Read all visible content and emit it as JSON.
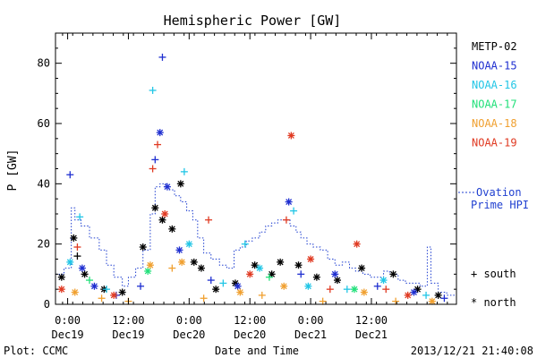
{
  "chart_data": {
    "type": "scatter",
    "title": "Hemispheric Power [GW]",
    "ylabel": "P [GW]",
    "xlabel": "Date and Time",
    "ylim": [
      0,
      90
    ],
    "xlim": [
      -0.1,
      3.2
    ],
    "yticks": [
      0,
      20,
      40,
      60,
      80
    ],
    "xticks": [
      {
        "x": 0.0,
        "top": "0:00",
        "bottom": "Dec19"
      },
      {
        "x": 0.5,
        "top": "12:00",
        "bottom": "Dec19"
      },
      {
        "x": 1.0,
        "top": "0:00",
        "bottom": "Dec20"
      },
      {
        "x": 1.5,
        "top": "12:00",
        "bottom": "Dec20"
      },
      {
        "x": 2.0,
        "top": "0:00",
        "bottom": "Dec21"
      },
      {
        "x": 2.5,
        "top": "12:00",
        "bottom": "Dec21"
      }
    ],
    "footer_left": "Plot: CCMC",
    "footer_right": "2013/12/21 21:40:08",
    "series": [
      {
        "name": "METP-02",
        "color": "#000000"
      },
      {
        "name": "NOAA-15",
        "color": "#1f2fd0"
      },
      {
        "name": "NOAA-16",
        "color": "#22c6e6"
      },
      {
        "name": "NOAA-17",
        "color": "#22e07a"
      },
      {
        "name": "NOAA-18",
        "color": "#f0a030"
      },
      {
        "name": "NOAA-19",
        "color": "#e03a22"
      }
    ],
    "markers": {
      "plus_label": "+ south",
      "star_label": "* north"
    },
    "ovation": {
      "label_line1": "Ovation",
      "label_line2": "Prime HPI",
      "color": "#1f3fd0",
      "steps": [
        [
          -0.1,
          10
        ],
        [
          -0.03,
          12
        ],
        [
          0.03,
          32
        ],
        [
          0.06,
          28
        ],
        [
          0.11,
          26
        ],
        [
          0.18,
          22
        ],
        [
          0.26,
          18
        ],
        [
          0.32,
          13
        ],
        [
          0.38,
          9
        ],
        [
          0.45,
          6
        ],
        [
          0.5,
          9
        ],
        [
          0.56,
          12
        ],
        [
          0.62,
          18
        ],
        [
          0.68,
          30
        ],
        [
          0.72,
          39
        ],
        [
          0.76,
          40
        ],
        [
          0.82,
          38
        ],
        [
          0.88,
          36
        ],
        [
          0.93,
          34
        ],
        [
          0.98,
          31
        ],
        [
          1.03,
          28
        ],
        [
          1.07,
          22
        ],
        [
          1.12,
          17
        ],
        [
          1.18,
          15
        ],
        [
          1.25,
          13
        ],
        [
          1.31,
          12
        ],
        [
          1.37,
          18
        ],
        [
          1.42,
          19
        ],
        [
          1.47,
          21
        ],
        [
          1.52,
          22
        ],
        [
          1.58,
          24
        ],
        [
          1.63,
          26
        ],
        [
          1.68,
          27
        ],
        [
          1.73,
          28
        ],
        [
          1.78,
          28
        ],
        [
          1.83,
          26
        ],
        [
          1.88,
          24
        ],
        [
          1.92,
          22
        ],
        [
          1.97,
          20
        ],
        [
          2.02,
          19
        ],
        [
          2.08,
          18
        ],
        [
          2.14,
          15
        ],
        [
          2.2,
          13
        ],
        [
          2.26,
          14
        ],
        [
          2.32,
          12
        ],
        [
          2.37,
          11
        ],
        [
          2.43,
          10
        ],
        [
          2.49,
          9
        ],
        [
          2.55,
          9
        ],
        [
          2.6,
          11
        ],
        [
          2.65,
          10
        ],
        [
          2.72,
          8
        ],
        [
          2.78,
          7
        ],
        [
          2.84,
          7
        ],
        [
          2.9,
          6
        ],
        [
          2.96,
          19
        ],
        [
          2.99,
          7
        ],
        [
          3.05,
          4
        ],
        [
          3.12,
          3
        ],
        [
          3.2,
          2
        ]
      ]
    },
    "points": [
      {
        "s": "METP-02",
        "m": "star",
        "x": -0.05,
        "y": 9
      },
      {
        "s": "METP-02",
        "m": "star",
        "x": 0.05,
        "y": 22
      },
      {
        "s": "METP-02",
        "m": "plus",
        "x": 0.08,
        "y": 16
      },
      {
        "s": "METP-02",
        "m": "star",
        "x": 0.14,
        "y": 10
      },
      {
        "s": "METP-02",
        "m": "star",
        "x": 0.3,
        "y": 5
      },
      {
        "s": "METP-02",
        "m": "star",
        "x": 0.45,
        "y": 4
      },
      {
        "s": "METP-02",
        "m": "star",
        "x": 0.62,
        "y": 19
      },
      {
        "s": "METP-02",
        "m": "star",
        "x": 0.72,
        "y": 32
      },
      {
        "s": "METP-02",
        "m": "star",
        "x": 0.78,
        "y": 28
      },
      {
        "s": "METP-02",
        "m": "star",
        "x": 0.86,
        "y": 25
      },
      {
        "s": "METP-02",
        "m": "star",
        "x": 0.93,
        "y": 40
      },
      {
        "s": "METP-02",
        "m": "star",
        "x": 1.04,
        "y": 14
      },
      {
        "s": "METP-02",
        "m": "star",
        "x": 1.1,
        "y": 12
      },
      {
        "s": "METP-02",
        "m": "star",
        "x": 1.22,
        "y": 5
      },
      {
        "s": "METP-02",
        "m": "star",
        "x": 1.38,
        "y": 7
      },
      {
        "s": "METP-02",
        "m": "star",
        "x": 1.54,
        "y": 13
      },
      {
        "s": "METP-02",
        "m": "star",
        "x": 1.68,
        "y": 10
      },
      {
        "s": "METP-02",
        "m": "star",
        "x": 1.75,
        "y": 14
      },
      {
        "s": "METP-02",
        "m": "star",
        "x": 1.9,
        "y": 13
      },
      {
        "s": "METP-02",
        "m": "star",
        "x": 2.05,
        "y": 9
      },
      {
        "s": "METP-02",
        "m": "star",
        "x": 2.22,
        "y": 8
      },
      {
        "s": "METP-02",
        "m": "star",
        "x": 2.42,
        "y": 12
      },
      {
        "s": "METP-02",
        "m": "star",
        "x": 2.68,
        "y": 10
      },
      {
        "s": "METP-02",
        "m": "star",
        "x": 2.88,
        "y": 5
      },
      {
        "s": "METP-02",
        "m": "star",
        "x": 3.05,
        "y": 3
      },
      {
        "s": "NOAA-15",
        "m": "plus",
        "x": 0.02,
        "y": 43
      },
      {
        "s": "NOAA-15",
        "m": "star",
        "x": 0.12,
        "y": 12
      },
      {
        "s": "NOAA-15",
        "m": "star",
        "x": 0.22,
        "y": 6
      },
      {
        "s": "NOAA-15",
        "m": "plus",
        "x": 0.4,
        "y": 3
      },
      {
        "s": "NOAA-15",
        "m": "plus",
        "x": 0.6,
        "y": 6
      },
      {
        "s": "NOAA-15",
        "m": "star",
        "x": 0.76,
        "y": 57
      },
      {
        "s": "NOAA-15",
        "m": "plus",
        "x": 0.78,
        "y": 82
      },
      {
        "s": "NOAA-15",
        "m": "plus",
        "x": 0.72,
        "y": 48
      },
      {
        "s": "NOAA-15",
        "m": "star",
        "x": 0.82,
        "y": 39
      },
      {
        "s": "NOAA-15",
        "m": "star",
        "x": 0.92,
        "y": 18
      },
      {
        "s": "NOAA-15",
        "m": "plus",
        "x": 1.18,
        "y": 8
      },
      {
        "s": "NOAA-15",
        "m": "star",
        "x": 1.4,
        "y": 6
      },
      {
        "s": "NOAA-15",
        "m": "star",
        "x": 1.82,
        "y": 34
      },
      {
        "s": "NOAA-15",
        "m": "plus",
        "x": 1.92,
        "y": 10
      },
      {
        "s": "NOAA-15",
        "m": "star",
        "x": 2.2,
        "y": 10
      },
      {
        "s": "NOAA-15",
        "m": "plus",
        "x": 2.55,
        "y": 6
      },
      {
        "s": "NOAA-15",
        "m": "star",
        "x": 2.85,
        "y": 4
      },
      {
        "s": "NOAA-15",
        "m": "plus",
        "x": 3.1,
        "y": 2
      },
      {
        "s": "NOAA-16",
        "m": "plus",
        "x": 0.1,
        "y": 29
      },
      {
        "s": "NOAA-16",
        "m": "star",
        "x": 0.02,
        "y": 14
      },
      {
        "s": "NOAA-16",
        "m": "plus",
        "x": 0.32,
        "y": 5
      },
      {
        "s": "NOAA-16",
        "m": "plus",
        "x": 0.7,
        "y": 71
      },
      {
        "s": "NOAA-16",
        "m": "plus",
        "x": 0.96,
        "y": 44
      },
      {
        "s": "NOAA-16",
        "m": "star",
        "x": 1.0,
        "y": 20
      },
      {
        "s": "NOAA-16",
        "m": "plus",
        "x": 1.28,
        "y": 7
      },
      {
        "s": "NOAA-16",
        "m": "plus",
        "x": 1.46,
        "y": 20
      },
      {
        "s": "NOAA-16",
        "m": "star",
        "x": 1.58,
        "y": 12
      },
      {
        "s": "NOAA-16",
        "m": "plus",
        "x": 1.86,
        "y": 31
      },
      {
        "s": "NOAA-16",
        "m": "star",
        "x": 1.98,
        "y": 6
      },
      {
        "s": "NOAA-16",
        "m": "plus",
        "x": 2.3,
        "y": 5
      },
      {
        "s": "NOAA-16",
        "m": "star",
        "x": 2.6,
        "y": 8
      },
      {
        "s": "NOAA-16",
        "m": "plus",
        "x": 2.95,
        "y": 3
      },
      {
        "s": "NOAA-17",
        "m": "plus",
        "x": 0.18,
        "y": 8
      },
      {
        "s": "NOAA-17",
        "m": "star",
        "x": 0.66,
        "y": 11
      },
      {
        "s": "NOAA-17",
        "m": "plus",
        "x": 1.66,
        "y": 9
      },
      {
        "s": "NOAA-17",
        "m": "star",
        "x": 2.36,
        "y": 5
      },
      {
        "s": "NOAA-18",
        "m": "star",
        "x": 0.06,
        "y": 4
      },
      {
        "s": "NOAA-18",
        "m": "plus",
        "x": 0.28,
        "y": 2
      },
      {
        "s": "NOAA-18",
        "m": "plus",
        "x": 0.5,
        "y": 1
      },
      {
        "s": "NOAA-18",
        "m": "star",
        "x": 0.68,
        "y": 13
      },
      {
        "s": "NOAA-18",
        "m": "plus",
        "x": 0.86,
        "y": 12
      },
      {
        "s": "NOAA-18",
        "m": "star",
        "x": 0.94,
        "y": 14
      },
      {
        "s": "NOAA-18",
        "m": "plus",
        "x": 1.12,
        "y": 2
      },
      {
        "s": "NOAA-18",
        "m": "star",
        "x": 1.42,
        "y": 4
      },
      {
        "s": "NOAA-18",
        "m": "plus",
        "x": 1.6,
        "y": 3
      },
      {
        "s": "NOAA-18",
        "m": "star",
        "x": 1.78,
        "y": 6
      },
      {
        "s": "NOAA-18",
        "m": "plus",
        "x": 2.1,
        "y": 1
      },
      {
        "s": "NOAA-18",
        "m": "star",
        "x": 2.44,
        "y": 4
      },
      {
        "s": "NOAA-18",
        "m": "plus",
        "x": 2.7,
        "y": 1
      },
      {
        "s": "NOAA-18",
        "m": "star",
        "x": 3.0,
        "y": 1
      },
      {
        "s": "NOAA-19",
        "m": "star",
        "x": -0.05,
        "y": 5
      },
      {
        "s": "NOAA-19",
        "m": "plus",
        "x": 0.08,
        "y": 19
      },
      {
        "s": "NOAA-19",
        "m": "star",
        "x": 0.38,
        "y": 3
      },
      {
        "s": "NOAA-19",
        "m": "plus",
        "x": 0.74,
        "y": 53
      },
      {
        "s": "NOAA-19",
        "m": "plus",
        "x": 0.7,
        "y": 45
      },
      {
        "s": "NOAA-19",
        "m": "star",
        "x": 0.8,
        "y": 30
      },
      {
        "s": "NOAA-19",
        "m": "plus",
        "x": 1.16,
        "y": 28
      },
      {
        "s": "NOAA-19",
        "m": "star",
        "x": 1.5,
        "y": 10
      },
      {
        "s": "NOAA-19",
        "m": "star",
        "x": 1.84,
        "y": 56
      },
      {
        "s": "NOAA-19",
        "m": "plus",
        "x": 1.8,
        "y": 28
      },
      {
        "s": "NOAA-19",
        "m": "star",
        "x": 2.0,
        "y": 15
      },
      {
        "s": "NOAA-19",
        "m": "plus",
        "x": 2.16,
        "y": 5
      },
      {
        "s": "NOAA-19",
        "m": "star",
        "x": 2.38,
        "y": 20
      },
      {
        "s": "NOAA-19",
        "m": "plus",
        "x": 2.62,
        "y": 5
      },
      {
        "s": "NOAA-19",
        "m": "star",
        "x": 2.8,
        "y": 3
      }
    ]
  }
}
